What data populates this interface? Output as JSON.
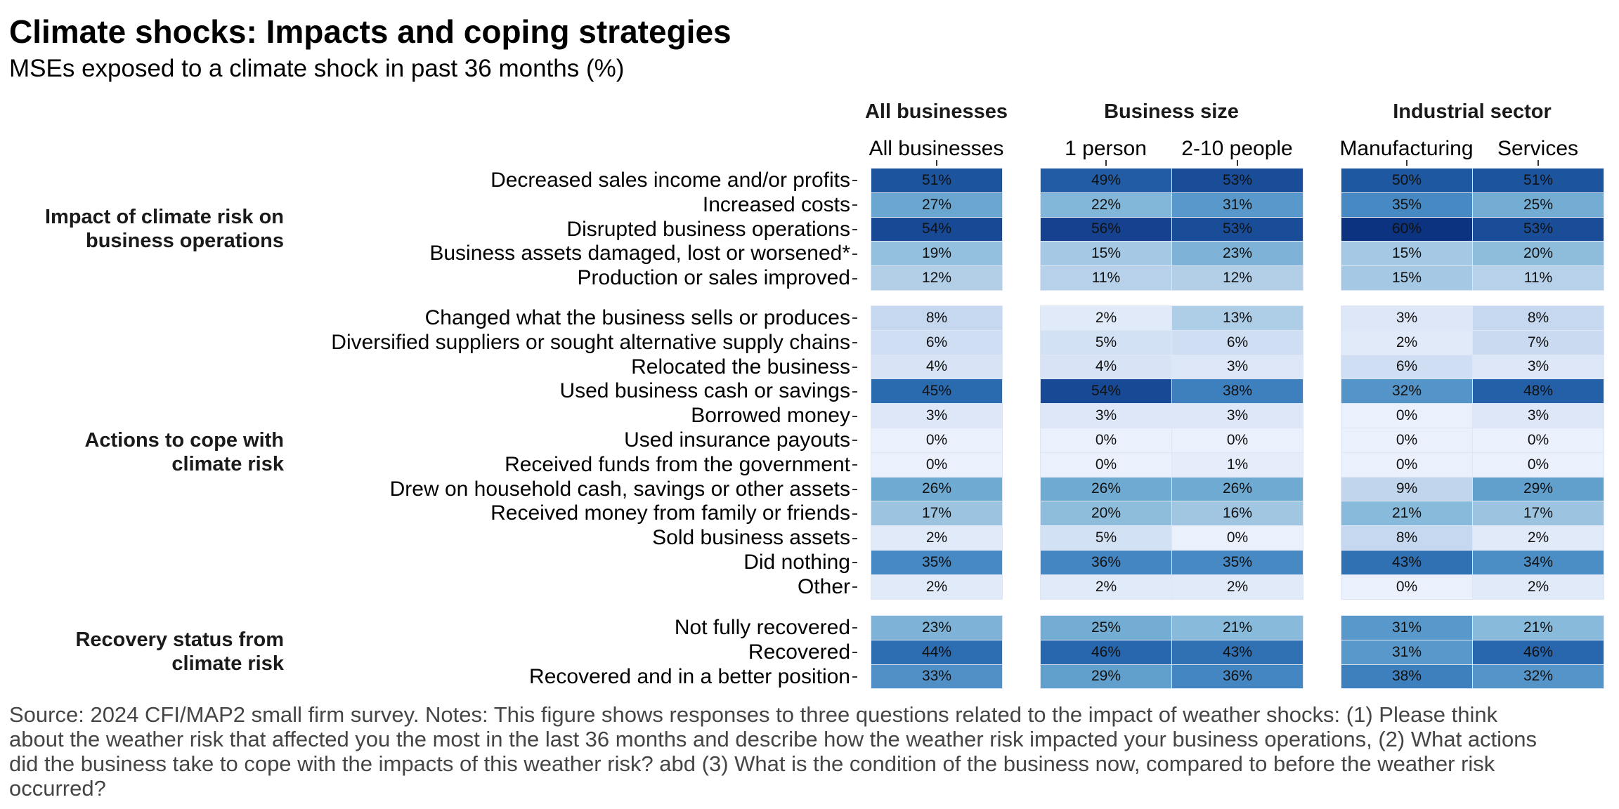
{
  "title": "Climate shocks: Impacts and coping strategies",
  "subtitle": "MSEs exposed to a climate shock in past 36 months (%)",
  "footer": "Source: 2024 CFI/MAP2 small firm survey. Notes: This figure shows responses to three questions related to the impact of weather shocks: (1) Please think about the weather risk that affected you the most in the last 36 months and describe how the weather risk impacted your business operations, (2) What actions did the business take to cope with the impacts of this weather risk? abd (3) What is the condition of the business now, compared to before the weather risk occurred?",
  "colors": {
    "low": "#eaf0fc",
    "high": "#08306b",
    "text": "#111111"
  },
  "chart_data": {
    "type": "heatmap",
    "title": "Climate shocks: Impacts and coping strategies",
    "subtitle": "MSEs exposed to a climate shock in past 36 months (%)",
    "value_range": [
      0,
      60
    ],
    "panels": [
      {
        "label": "All businesses",
        "columns": [
          "All businesses"
        ]
      },
      {
        "label": "Business size",
        "columns": [
          "1 person",
          "2-10 people"
        ]
      },
      {
        "label": "Industrial sector",
        "columns": [
          "Manufacturing",
          "Services"
        ]
      }
    ],
    "columns": [
      "All businesses",
      "1 person",
      "2-10 people",
      "Manufacturing",
      "Services"
    ],
    "groups": [
      {
        "label": "Impact of climate risk on\nbusiness operations",
        "label_lines": [
          "Impact of climate risk on",
          "business operations"
        ],
        "rows": [
          {
            "label": "Decreased sales income and/or profits",
            "values": [
              51,
              49,
              53,
              50,
              51
            ]
          },
          {
            "label": "Increased costs",
            "values": [
              27,
              22,
              31,
              35,
              25
            ]
          },
          {
            "label": "Disrupted business operations",
            "values": [
              54,
              56,
              53,
              60,
              53
            ]
          },
          {
            "label": "Business assets damaged, lost or worsened*",
            "values": [
              19,
              15,
              23,
              15,
              20
            ]
          },
          {
            "label": "Production or sales improved",
            "values": [
              12,
              11,
              12,
              15,
              11
            ]
          }
        ]
      },
      {
        "label": "Actions to cope with\nclimate risk",
        "label_lines": [
          "Actions to cope with",
          "climate risk"
        ],
        "rows": [
          {
            "label": "Changed what the business sells or produces",
            "values": [
              8,
              2,
              13,
              3,
              8
            ]
          },
          {
            "label": "Diversified suppliers or sought alternative supply chains",
            "values": [
              6,
              5,
              6,
              2,
              7
            ]
          },
          {
            "label": "Relocated the business",
            "values": [
              4,
              4,
              3,
              6,
              3
            ]
          },
          {
            "label": "Used business cash or savings",
            "values": [
              45,
              54,
              38,
              32,
              48
            ]
          },
          {
            "label": "Borrowed money",
            "values": [
              3,
              3,
              3,
              0,
              3
            ]
          },
          {
            "label": "Used insurance payouts",
            "values": [
              0,
              0,
              0,
              0,
              0
            ]
          },
          {
            "label": "Received funds from the government",
            "values": [
              0,
              0,
              1,
              0,
              0
            ]
          },
          {
            "label": "Drew on household cash, savings or other assets",
            "values": [
              26,
              26,
              26,
              9,
              29
            ]
          },
          {
            "label": "Received money from family or friends",
            "values": [
              17,
              20,
              16,
              21,
              17
            ]
          },
          {
            "label": "Sold business assets",
            "values": [
              2,
              5,
              0,
              8,
              2
            ]
          },
          {
            "label": "Did nothing",
            "values": [
              35,
              36,
              35,
              43,
              34
            ]
          },
          {
            "label": "Other",
            "values": [
              2,
              2,
              2,
              0,
              2
            ]
          }
        ]
      },
      {
        "label": "Recovery status from\nclimate risk",
        "label_lines": [
          "Recovery status from",
          "climate risk"
        ],
        "rows": [
          {
            "label": "Not fully recovered",
            "values": [
              23,
              25,
              21,
              31,
              21
            ]
          },
          {
            "label": "Recovered",
            "values": [
              44,
              46,
              43,
              31,
              46
            ]
          },
          {
            "label": "Recovered and in a better position",
            "values": [
              33,
              29,
              36,
              38,
              32
            ]
          }
        ]
      }
    ],
    "value_suffix": "%",
    "legend": "none",
    "grid": false
  }
}
